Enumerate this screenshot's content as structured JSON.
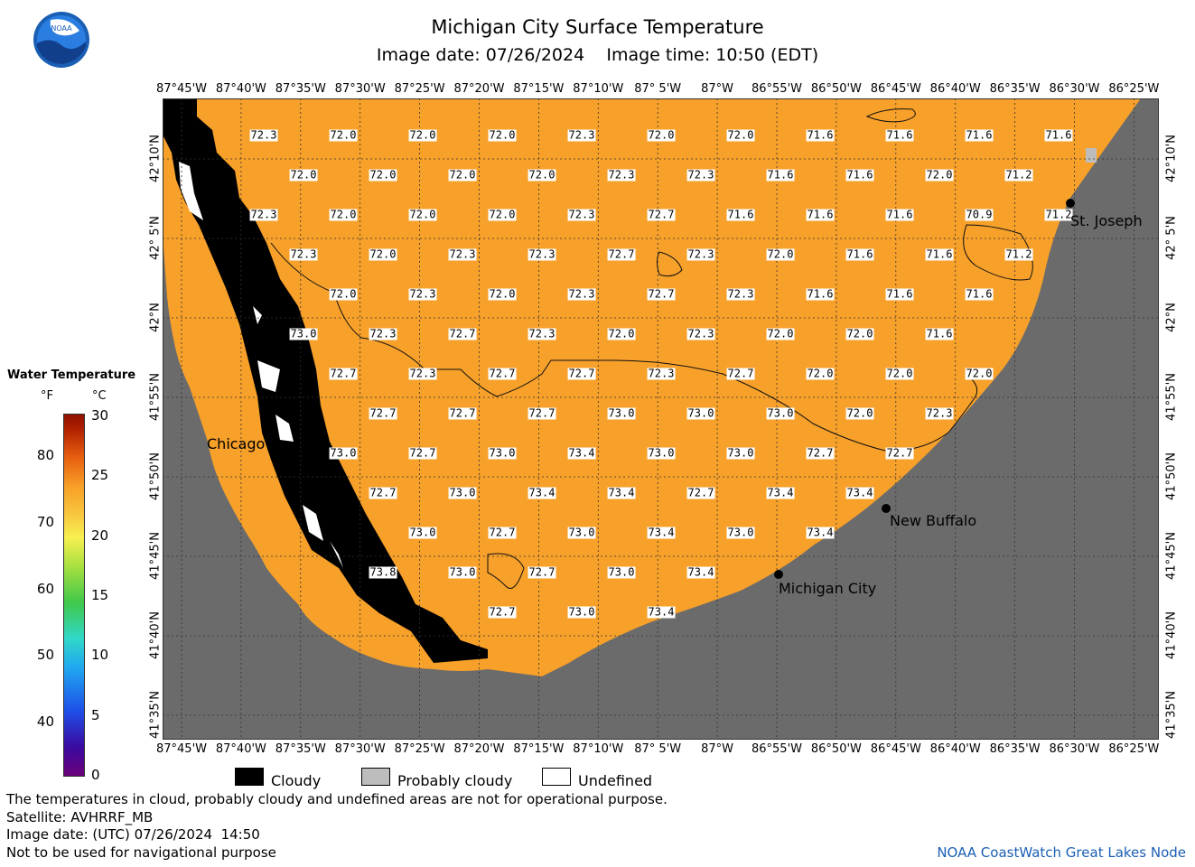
{
  "header": {
    "title": "Michigan City Surface Temperature",
    "subtitle": "Image date: 07/26/2024    Image time: 10:50 (EDT)",
    "logo_text": "NOAA"
  },
  "map": {
    "lon_labels": [
      "87°45'W",
      "87°40'W",
      "87°35'W",
      "87°30'W",
      "87°25'W",
      "87°20'W",
      "87°15'W",
      "87°10'W",
      "87° 5'W",
      "87°W",
      "86°55'W",
      "86°50'W",
      "86°45'W",
      "86°40'W",
      "86°35'W",
      "86°30'W",
      "86°25'W"
    ],
    "lat_labels": [
      "42°10'N",
      "42° 5'N",
      "42°N",
      "41°55'N",
      "41°50'N",
      "41°45'N",
      "41°40'N",
      "41°35'N"
    ],
    "colors": {
      "water": "#f7a02a",
      "land": "#6b6b6b",
      "cloud": "#000000",
      "probably_cloudy": "#bdbdbd",
      "undefined": "#ffffff"
    },
    "temperature_rows": [
      [
        "72.3",
        "72.0",
        "72.0",
        "72.0",
        "72.3",
        "72.0",
        "72.0",
        "71.6",
        "71.6",
        "71.6",
        "71.6"
      ],
      [
        "72.0",
        "72.0",
        "72.0",
        "72.0",
        "72.3",
        "72.3",
        "71.6",
        "71.6",
        "72.0",
        "71.2"
      ],
      [
        "72.3",
        "72.0",
        "72.0",
        "72.0",
        "72.3",
        "72.7",
        "71.6",
        "71.6",
        "71.6",
        "70.9",
        "71.2"
      ],
      [
        "72.3",
        "72.0",
        "72.3",
        "72.3",
        "72.7",
        "72.3",
        "72.0",
        "71.6",
        "71.6",
        "71.2"
      ],
      [
        "72.0",
        "72.3",
        "72.0",
        "72.3",
        "72.7",
        "72.3",
        "71.6",
        "71.6",
        "71.6"
      ],
      [
        "73.0",
        "72.3",
        "72.7",
        "72.3",
        "72.0",
        "72.3",
        "72.0",
        "72.0",
        "71.6"
      ],
      [
        "72.7",
        "72.3",
        "72.7",
        "72.7",
        "72.3",
        "72.7",
        "72.0",
        "72.0",
        "72.0"
      ],
      [
        "72.7",
        "72.7",
        "72.7",
        "73.0",
        "73.0",
        "73.0",
        "72.0",
        "72.3"
      ],
      [
        "73.0",
        "72.7",
        "73.0",
        "73.4",
        "73.0",
        "73.0",
        "72.7",
        "72.7"
      ],
      [
        "72.7",
        "73.0",
        "73.4",
        "73.4",
        "72.7",
        "73.4",
        "73.4"
      ],
      [
        "73.0",
        "72.7",
        "73.0",
        "73.4",
        "73.0",
        "73.4"
      ],
      [
        "73.8",
        "73.0",
        "72.7",
        "73.0",
        "73.4"
      ],
      [
        "72.7",
        "73.0",
        "73.4"
      ]
    ],
    "cities": [
      {
        "name": "Chicago"
      },
      {
        "name": "St. Joseph"
      },
      {
        "name": "New Buffalo"
      },
      {
        "name": "Michigan City"
      }
    ]
  },
  "legend": {
    "title": "Water Temperature",
    "unit_f": "°F",
    "unit_c": "°C",
    "ticks_f": [
      "80",
      "70",
      "60",
      "50",
      "40"
    ],
    "ticks_c": [
      "30",
      "25",
      "20",
      "15",
      "10",
      "5",
      "0"
    ],
    "cloud_items": [
      {
        "label": "Cloudy",
        "color": "#000000"
      },
      {
        "label": "Probably cloudy",
        "color": "#bdbdbd"
      },
      {
        "label": "Undefined",
        "color": "#ffffff"
      }
    ]
  },
  "footer": {
    "note": "The temperatures in cloud, probably cloudy and undefined areas are not for operational purpose.",
    "satellite": "Satellite: AVHRRF_MB",
    "image_date_utc": "Image date: (UTC) 07/26/2024  14:50",
    "nav_warning": "Not to be used for navigational purpose",
    "credit": "NOAA CoastWatch Great Lakes Node"
  }
}
